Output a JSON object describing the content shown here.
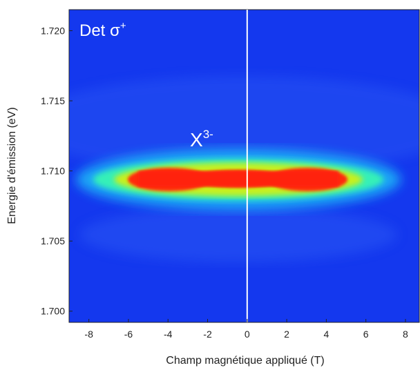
{
  "chart_data": {
    "type": "heatmap",
    "xlabel": "Champ magnétique appliqué (T)",
    "ylabel": "Energie d'émission (eV)",
    "xlim": [
      -9,
      8.7
    ],
    "ylim": [
      1.6992,
      1.7215
    ],
    "xticks": [
      -8,
      -6,
      -4,
      -2,
      0,
      2,
      4,
      6,
      8
    ],
    "yticks": [
      {
        "value": 1.7,
        "label": "1.700"
      },
      1.705,
      {
        "value": 1.71,
        "label": "1.710"
      },
      1.715,
      {
        "value": 1.72,
        "label": "1.720"
      }
    ],
    "vline": 0,
    "annotations": [
      {
        "text": "Det σ",
        "sup": "+"
      },
      {
        "text": "X",
        "sup": "3-"
      }
    ]
  }
}
